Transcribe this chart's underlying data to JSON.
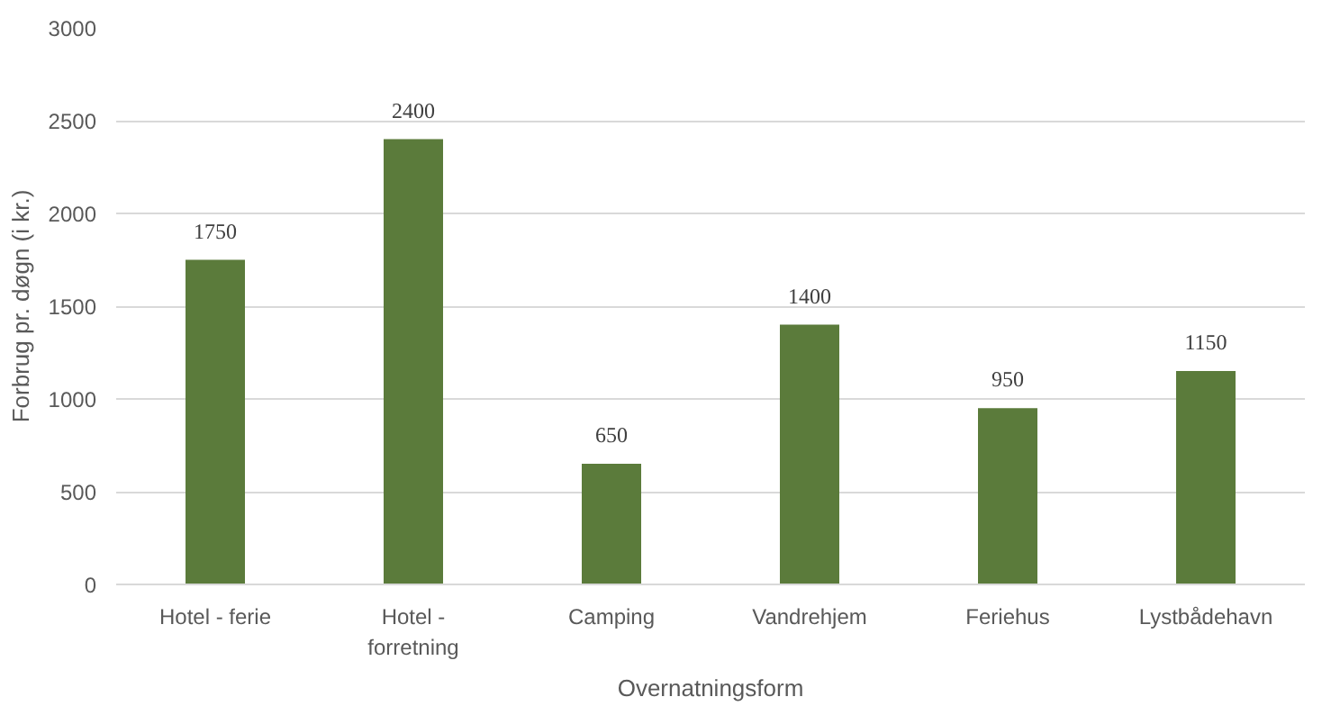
{
  "chart_data": {
    "type": "bar",
    "xlabel": "Overnatningsform",
    "ylabel": "Forbrug pr. døgn (i kr.)",
    "categories": [
      "Hotel - ferie",
      "Hotel - forretning",
      "Camping",
      "Vandrehjem",
      "Feriehus",
      "Lystbådehavn"
    ],
    "values": [
      1750,
      2400,
      650,
      1400,
      950,
      1150
    ],
    "color": "#5b7b3b",
    "ylim": [
      0,
      3000
    ],
    "yticks": [
      0,
      500,
      1000,
      1500,
      2000,
      2500,
      3000
    ],
    "grid": "y",
    "data_labels": true
  }
}
